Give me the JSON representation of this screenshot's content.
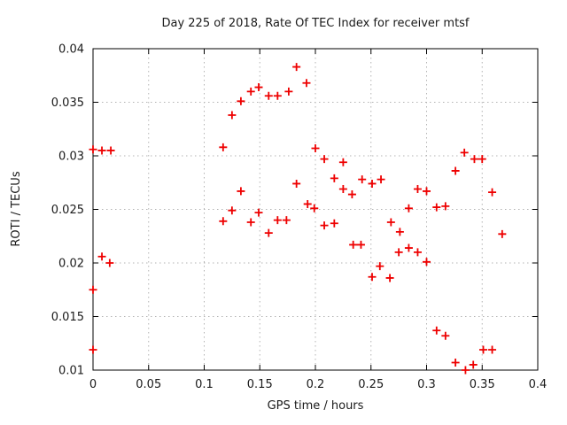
{
  "page": {
    "background_color": "#ffffff"
  },
  "chart_data": {
    "type": "scatter",
    "title": "Day 225 of 2018, Rate Of TEC Index for receiver mtsf",
    "xlabel": "GPS time / hours",
    "ylabel": "ROTI / TECUs",
    "xlim": [
      0,
      0.4
    ],
    "ylim": [
      0.01,
      0.04
    ],
    "xticks": {
      "values": [
        0,
        0.05,
        0.1,
        0.15,
        0.2,
        0.25,
        0.3,
        0.35,
        0.4
      ],
      "labels": [
        "0",
        "0.05",
        "0.1",
        "0.15",
        "0.2",
        "0.25",
        "0.3",
        "0.35",
        "0.4"
      ]
    },
    "yticks": {
      "values": [
        0.01,
        0.015,
        0.02,
        0.025,
        0.03,
        0.035,
        0.04
      ],
      "labels": [
        "0.01",
        "0.015",
        "0.02",
        "0.025",
        "0.03",
        "0.035",
        "0.04"
      ]
    },
    "grid": true,
    "grid_style": "dotted",
    "grid_color": "#b3b3b3",
    "border_color": "#000000",
    "text_color": "#1a1a1a",
    "legend_position": "none",
    "marker": {
      "shape": "plus",
      "color": "#ee0000",
      "size": 9,
      "stroke_width": 1.8
    },
    "series": [
      {
        "name": "ROTI",
        "points": [
          [
            0.0,
            0.0306
          ],
          [
            0.008,
            0.0305
          ],
          [
            0.016,
            0.0305
          ],
          [
            0.008,
            0.0206
          ],
          [
            0.015,
            0.02
          ],
          [
            0.0,
            0.0175
          ],
          [
            0.0,
            0.0119
          ],
          [
            0.117,
            0.0308
          ],
          [
            0.125,
            0.0338
          ],
          [
            0.133,
            0.0351
          ],
          [
            0.142,
            0.036
          ],
          [
            0.149,
            0.0364
          ],
          [
            0.158,
            0.0356
          ],
          [
            0.166,
            0.0356
          ],
          [
            0.176,
            0.036
          ],
          [
            0.183,
            0.0383
          ],
          [
            0.192,
            0.0368
          ],
          [
            0.2,
            0.0307
          ],
          [
            0.117,
            0.0239
          ],
          [
            0.125,
            0.0249
          ],
          [
            0.133,
            0.0267
          ],
          [
            0.142,
            0.0238
          ],
          [
            0.149,
            0.0247
          ],
          [
            0.158,
            0.0228
          ],
          [
            0.166,
            0.024
          ],
          [
            0.174,
            0.024
          ],
          [
            0.183,
            0.0274
          ],
          [
            0.193,
            0.0255
          ],
          [
            0.199,
            0.0251
          ],
          [
            0.208,
            0.0297
          ],
          [
            0.225,
            0.0294
          ],
          [
            0.217,
            0.0279
          ],
          [
            0.225,
            0.0269
          ],
          [
            0.233,
            0.0264
          ],
          [
            0.242,
            0.0278
          ],
          [
            0.251,
            0.0274
          ],
          [
            0.259,
            0.0278
          ],
          [
            0.208,
            0.0235
          ],
          [
            0.217,
            0.0237
          ],
          [
            0.234,
            0.0217
          ],
          [
            0.241,
            0.0217
          ],
          [
            0.268,
            0.0238
          ],
          [
            0.276,
            0.0229
          ],
          [
            0.284,
            0.0251
          ],
          [
            0.275,
            0.021
          ],
          [
            0.284,
            0.0214
          ],
          [
            0.292,
            0.021
          ],
          [
            0.292,
            0.0269
          ],
          [
            0.3,
            0.0267
          ],
          [
            0.309,
            0.0252
          ],
          [
            0.317,
            0.0253
          ],
          [
            0.3,
            0.0201
          ],
          [
            0.326,
            0.0286
          ],
          [
            0.334,
            0.0303
          ],
          [
            0.343,
            0.0297
          ],
          [
            0.35,
            0.0297
          ],
          [
            0.359,
            0.0266
          ],
          [
            0.368,
            0.0227
          ],
          [
            0.251,
            0.0187
          ],
          [
            0.258,
            0.0197
          ],
          [
            0.267,
            0.0186
          ],
          [
            0.309,
            0.0137
          ],
          [
            0.317,
            0.0132
          ],
          [
            0.326,
            0.0107
          ],
          [
            0.335,
            0.01
          ],
          [
            0.342,
            0.0105
          ],
          [
            0.351,
            0.0119
          ],
          [
            0.359,
            0.0119
          ]
        ]
      }
    ]
  }
}
